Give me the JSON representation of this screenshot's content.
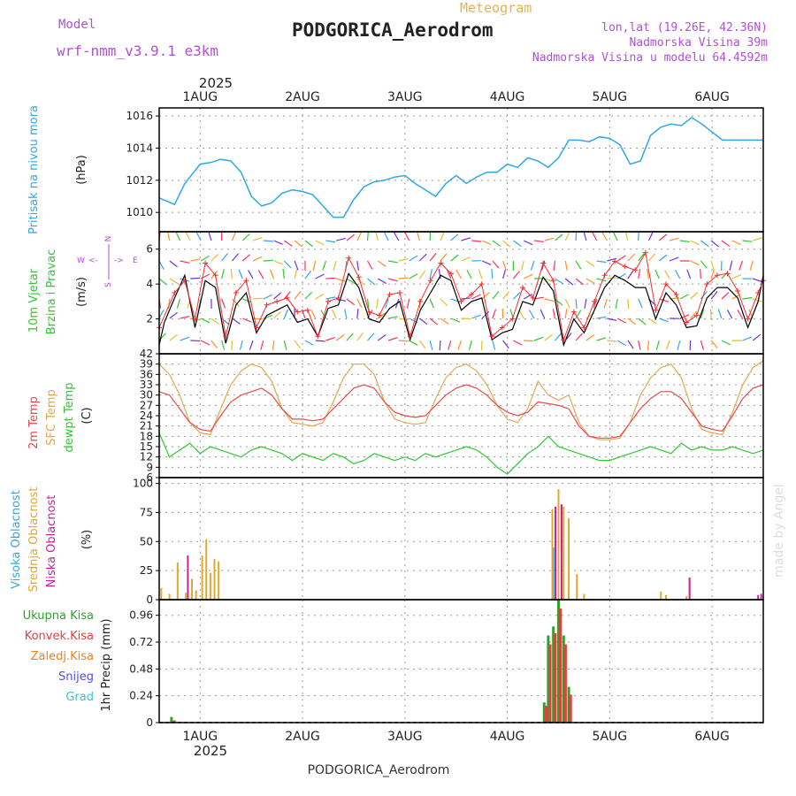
{
  "header": {
    "model_label": "Model",
    "model_name": "wrf-nmm_v3.9.1 e3km",
    "meteogram_label": "Meteogram",
    "station_title": "PODGORICA_Aerodrom",
    "lonlat": "lon,lat (19.26E, 42.36N)",
    "elevation": "Nadmorska Visina 39m",
    "model_elevation": "Nadmorska Visina u modelu 64.4592m"
  },
  "top_axis": {
    "year": "2025",
    "days": [
      "1AUG",
      "2AUG",
      "3AUG",
      "4AUG",
      "5AUG",
      "6AUG"
    ]
  },
  "bottom_axis": {
    "year": "2025",
    "days": [
      "1AUG",
      "2AUG",
      "3AUG",
      "4AUG",
      "5AUG",
      "6AUG"
    ]
  },
  "footer": {
    "station": "PODGORICA_Aerodrom",
    "credit": "made by Angel"
  },
  "colors": {
    "pressure": "#30a8e8",
    "wind_speed": "#000000",
    "gust": "#ee3030",
    "temp2m": "#e84a4a",
    "sfc_temp": "#e0a850",
    "dewpt": "#30c830",
    "cloud_high": "#30a8e8",
    "cloud_mid": "#e0a830",
    "cloud_low": "#c820a0",
    "total_precip": "#30a030",
    "conv_precip": "#e04040",
    "frozen_precip": "#f08020",
    "snow": "#5050e0",
    "hail": "#30c8c8"
  },
  "panels": {
    "pressure": {
      "ylabel_main": "Pritisak na nivou mora",
      "unit": "(hPa)"
    },
    "wind": {
      "ylabel_line1": "10m Vjetar",
      "ylabel_line2": "Brzina i Pravac",
      "unit": "(m/s)",
      "compass_n": "N",
      "compass_w": "W",
      "compass_e": "E",
      "compass_s": "S",
      "compass_w_arrow": "<-",
      "compass_e_arrow": "->"
    },
    "temperature": {
      "label_2m": "2m Temp",
      "label_sfc": "SFC Temp",
      "label_dew": "dewpt Temp",
      "unit": "(C)"
    },
    "cloud": {
      "label_high": "Visoka Oblacnost",
      "label_mid": "Srednja Oblacnost",
      "label_low": "Niska Oblacnost",
      "unit": "(%)"
    },
    "precip": {
      "legend": [
        "Ukupna Kisa",
        "Konvek.Kisa",
        "Zaledj.Kisa",
        "Snijeg",
        "Grad"
      ],
      "ylabel": "1hr Precip (mm)"
    }
  },
  "chart_data": [
    {
      "type": "line",
      "title": "Pritisak na nivou mora",
      "ylabel": "hPa",
      "x_range_days": [
        0.6,
        6.5
      ],
      "ylim": [
        1008.8,
        1016.5
      ],
      "yticks": [
        1010,
        1012,
        1014,
        1016
      ],
      "series": [
        {
          "name": "MSLP",
          "x": [
            0.6,
            0.75,
            0.85,
            1.0,
            1.1,
            1.2,
            1.3,
            1.4,
            1.5,
            1.6,
            1.7,
            1.8,
            1.9,
            2.0,
            2.1,
            2.2,
            2.3,
            2.4,
            2.5,
            2.6,
            2.7,
            2.8,
            2.9,
            3.0,
            3.1,
            3.2,
            3.3,
            3.4,
            3.5,
            3.6,
            3.7,
            3.8,
            3.9,
            4.0,
            4.1,
            4.2,
            4.3,
            4.4,
            4.5,
            4.6,
            4.7,
            4.8,
            4.9,
            5.0,
            5.1,
            5.2,
            5.3,
            5.4,
            5.5,
            5.6,
            5.7,
            5.8,
            5.9,
            6.0,
            6.1,
            6.2,
            6.3,
            6.4,
            6.5
          ],
          "values": [
            1010.9,
            1010.5,
            1011.8,
            1013.0,
            1013.1,
            1013.3,
            1013.2,
            1012.5,
            1011.0,
            1010.4,
            1010.6,
            1011.2,
            1011.4,
            1011.3,
            1011.1,
            1010.4,
            1009.7,
            1009.7,
            1010.8,
            1011.6,
            1011.9,
            1012.0,
            1012.2,
            1012.3,
            1011.8,
            1011.4,
            1011.0,
            1011.8,
            1012.3,
            1011.8,
            1012.2,
            1012.5,
            1012.5,
            1013.0,
            1012.8,
            1013.4,
            1013.2,
            1012.8,
            1013.4,
            1014.5,
            1014.5,
            1014.4,
            1014.7,
            1014.6,
            1014.2,
            1013.0,
            1013.2,
            1014.8,
            1015.3,
            1015.5,
            1015.4,
            1015.9,
            1015.5,
            1015.0,
            1014.5,
            1014.5,
            1014.5,
            1014.5,
            1014.5
          ]
        }
      ]
    },
    {
      "type": "line",
      "title": "10m Vjetar Brzina i Pravac",
      "ylabel": "m/s",
      "x_range_days": [
        0.6,
        6.5
      ],
      "ylim": [
        0,
        7
      ],
      "yticks": [
        2,
        4,
        6
      ],
      "series": [
        {
          "name": "Brzina",
          "x": [
            0.6,
            0.65,
            0.75,
            0.85,
            0.95,
            1.05,
            1.15,
            1.25,
            1.35,
            1.45,
            1.55,
            1.65,
            1.75,
            1.85,
            1.95,
            2.05,
            2.15,
            2.25,
            2.35,
            2.45,
            2.55,
            2.65,
            2.75,
            2.85,
            2.95,
            3.05,
            3.15,
            3.25,
            3.35,
            3.45,
            3.55,
            3.65,
            3.75,
            3.85,
            3.95,
            4.05,
            4.15,
            4.25,
            4.35,
            4.45,
            4.55,
            4.65,
            4.75,
            4.85,
            4.95,
            5.05,
            5.15,
            5.25,
            5.35,
            5.45,
            5.55,
            5.65,
            5.75,
            5.85,
            5.95,
            6.05,
            6.15,
            6.25,
            6.35,
            6.45,
            6.5
          ],
          "values": [
            0.5,
            1.8,
            3.2,
            4.5,
            1.5,
            4.2,
            3.8,
            0.6,
            2.8,
            3.5,
            1.2,
            2.2,
            2.5,
            2.8,
            1.8,
            2.0,
            1.0,
            2.6,
            2.8,
            4.6,
            3.8,
            2.0,
            1.8,
            2.6,
            3.0,
            0.8,
            2.5,
            3.5,
            4.5,
            4.2,
            2.5,
            3.0,
            3.2,
            0.8,
            1.2,
            1.4,
            3.0,
            2.8,
            4.4,
            3.6,
            0.5,
            2.0,
            1.2,
            2.5,
            3.8,
            4.5,
            4.2,
            3.8,
            3.8,
            2.0,
            3.5,
            2.8,
            1.5,
            1.6,
            3.2,
            3.8,
            3.8,
            3.2,
            1.5,
            3.0,
            4.5
          ]
        },
        {
          "name": "Udar",
          "x": [
            0.6,
            0.75,
            0.85,
            0.95,
            1.05,
            1.15,
            1.25,
            1.35,
            1.45,
            1.55,
            1.65,
            1.75,
            1.85,
            1.95,
            2.05,
            2.15,
            2.25,
            2.35,
            2.45,
            2.55,
            2.65,
            2.75,
            2.85,
            2.95,
            3.05,
            3.15,
            3.25,
            3.35,
            3.45,
            3.55,
            3.65,
            3.75,
            3.85,
            3.95,
            4.05,
            4.15,
            4.25,
            4.35,
            4.45,
            4.55,
            4.65,
            4.75,
            4.85,
            4.95,
            5.05,
            5.15,
            5.25,
            5.35,
            5.45,
            5.55,
            5.65,
            5.75,
            5.85,
            5.95,
            6.05,
            6.15,
            6.25,
            6.35,
            6.45,
            6.5
          ],
          "values": [
            1.5,
            3.5,
            4.2,
            2.0,
            5.2,
            4.5,
            1.0,
            3.5,
            4.2,
            1.5,
            2.8,
            3.0,
            3.2,
            2.4,
            2.5,
            1.0,
            3.0,
            3.2,
            5.5,
            4.4,
            2.4,
            2.2,
            3.4,
            3.5,
            1.0,
            3.0,
            4.2,
            5.2,
            4.6,
            3.0,
            3.4,
            4.0,
            1.0,
            1.5,
            2.0,
            3.8,
            3.2,
            5.2,
            4.2,
            0.8,
            2.4,
            1.5,
            3.0,
            4.5,
            5.3,
            5.0,
            4.8,
            5.8,
            2.5,
            4.0,
            3.4,
            1.8,
            2.2,
            4.0,
            4.5,
            4.6,
            3.6,
            2.0,
            3.5,
            4.2
          ]
        }
      ]
    },
    {
      "type": "line",
      "title": "Temperatura",
      "ylabel": "C",
      "x_range_days": [
        0.6,
        6.5
      ],
      "ylim": [
        6,
        42
      ],
      "yticks": [
        6,
        9,
        12,
        15,
        18,
        21,
        24,
        27,
        30,
        33,
        36,
        39,
        42
      ],
      "series": [
        {
          "name": "2m Temp",
          "x": [
            0.6,
            0.7,
            0.8,
            0.9,
            1.0,
            1.1,
            1.2,
            1.3,
            1.4,
            1.5,
            1.6,
            1.7,
            1.8,
            1.9,
            2.0,
            2.1,
            2.2,
            2.3,
            2.4,
            2.5,
            2.6,
            2.7,
            2.8,
            2.9,
            3.0,
            3.1,
            3.2,
            3.3,
            3.4,
            3.5,
            3.6,
            3.7,
            3.8,
            3.9,
            4.0,
            4.1,
            4.2,
            4.3,
            4.4,
            4.5,
            4.6,
            4.7,
            4.8,
            4.9,
            5.0,
            5.1,
            5.2,
            5.3,
            5.4,
            5.5,
            5.6,
            5.7,
            5.8,
            5.9,
            6.0,
            6.1,
            6.2,
            6.3,
            6.4,
            6.5
          ],
          "values": [
            31,
            30,
            26,
            22,
            20,
            19.5,
            24,
            28,
            30,
            31,
            32,
            30,
            26,
            23,
            23,
            22.5,
            23,
            26,
            29,
            32,
            33,
            32,
            28,
            25,
            24,
            23.5,
            24,
            27,
            30,
            32,
            33,
            32,
            30,
            27,
            25,
            24,
            25,
            28,
            27.5,
            27,
            26,
            21,
            18,
            17.5,
            17.5,
            18,
            22,
            26,
            29,
            31,
            31,
            29,
            25,
            21,
            20,
            19.5,
            24,
            29,
            32,
            33
          ]
        },
        {
          "name": "SFC Temp",
          "x": [
            0.6,
            0.7,
            0.8,
            0.9,
            1.0,
            1.1,
            1.2,
            1.3,
            1.4,
            1.5,
            1.6,
            1.7,
            1.8,
            1.9,
            2.0,
            2.1,
            2.2,
            2.3,
            2.4,
            2.5,
            2.6,
            2.7,
            2.8,
            2.9,
            3.0,
            3.1,
            3.2,
            3.3,
            3.4,
            3.5,
            3.6,
            3.7,
            3.8,
            3.9,
            4.0,
            4.1,
            4.2,
            4.3,
            4.4,
            4.5,
            4.6,
            4.7,
            4.8,
            4.9,
            5.0,
            5.1,
            5.2,
            5.3,
            5.4,
            5.5,
            5.6,
            5.7,
            5.8,
            5.9,
            6.0,
            6.1,
            6.2,
            6.3,
            6.4,
            6.5
          ],
          "values": [
            39,
            36,
            30,
            22,
            19,
            18.5,
            26,
            33,
            37,
            39,
            38,
            34,
            26,
            22,
            21.5,
            21,
            22,
            28,
            35,
            39,
            39,
            36,
            28,
            23,
            22,
            21.5,
            22,
            29,
            35,
            38,
            39,
            37,
            33,
            27,
            23,
            22,
            26,
            34,
            30,
            28.5,
            30,
            22,
            18,
            17,
            17,
            17.5,
            22,
            30,
            35,
            38,
            39,
            35,
            26,
            20,
            19,
            18.5,
            25,
            33,
            38,
            40
          ]
        },
        {
          "name": "dewpt Temp",
          "x": [
            0.6,
            0.7,
            0.8,
            0.9,
            1.0,
            1.1,
            1.2,
            1.3,
            1.4,
            1.5,
            1.6,
            1.7,
            1.8,
            1.9,
            2.0,
            2.1,
            2.2,
            2.3,
            2.4,
            2.5,
            2.6,
            2.7,
            2.8,
            2.9,
            3.0,
            3.1,
            3.2,
            3.3,
            3.4,
            3.5,
            3.6,
            3.7,
            3.8,
            3.9,
            4.0,
            4.1,
            4.2,
            4.3,
            4.4,
            4.5,
            4.6,
            4.7,
            4.8,
            4.9,
            5.0,
            5.1,
            5.2,
            5.3,
            5.4,
            5.5,
            5.6,
            5.7,
            5.8,
            5.9,
            6.0,
            6.1,
            6.2,
            6.3,
            6.4,
            6.5
          ],
          "values": [
            19,
            12,
            14,
            16,
            13,
            15,
            14,
            13,
            12,
            14,
            15,
            14,
            13,
            11,
            13,
            12,
            11,
            13,
            12,
            10,
            11,
            13,
            12,
            11,
            12,
            11,
            13,
            12,
            13,
            14,
            15,
            14,
            12,
            9,
            7,
            10,
            13,
            15,
            18,
            15,
            14,
            13,
            12,
            11,
            11,
            12,
            13,
            14,
            15,
            14,
            13,
            16,
            14,
            15,
            14,
            14,
            15,
            14,
            13,
            14
          ]
        }
      ]
    },
    {
      "type": "bar",
      "title": "Oblacnost",
      "ylabel": "%",
      "x_range_days": [
        0.6,
        6.5
      ],
      "ylim": [
        0,
        105
      ],
      "yticks": [
        0,
        25,
        50,
        75,
        100
      ],
      "series": [
        {
          "name": "Visoka Oblacnost",
          "x": [
            4.45,
            4.6
          ],
          "values": [
            45,
            10
          ]
        },
        {
          "name": "Srednja Oblacnost",
          "x": [
            0.62,
            0.7,
            0.78,
            0.86,
            0.92,
            0.96,
            1.02,
            1.06,
            1.1,
            1.14,
            1.18,
            4.44,
            4.5,
            4.55,
            4.6,
            4.68,
            4.75,
            5.5,
            5.55,
            5.75
          ],
          "values": [
            10,
            5,
            32,
            6,
            18,
            8,
            38,
            52,
            23,
            35,
            33,
            78,
            95,
            80,
            70,
            22,
            5,
            7,
            4,
            3
          ]
        },
        {
          "name": "Niska Oblacnost",
          "x": [
            0.88,
            4.47,
            4.53,
            5.78,
            6.45,
            6.48
          ],
          "values": [
            38,
            80,
            82,
            19,
            4,
            5
          ]
        }
      ]
    },
    {
      "type": "bar",
      "title": "1hr Precip",
      "ylabel": "mm",
      "x_range_days": [
        0.6,
        6.5
      ],
      "ylim": [
        0,
        1.1
      ],
      "yticks": [
        0,
        0.24,
        0.48,
        0.72,
        0.96
      ],
      "series": [
        {
          "name": "Ukupna Kisa",
          "x": [
            0.72,
            4.36,
            4.4,
            4.45,
            4.5,
            4.55,
            4.6
          ],
          "values": [
            0.05,
            0.18,
            0.78,
            0.86,
            1.1,
            0.78,
            0.32
          ]
        },
        {
          "name": "Konvek.Kisa",
          "x": [
            0.74,
            4.37,
            4.41,
            4.46,
            4.51,
            4.56,
            4.61
          ],
          "values": [
            0.02,
            0.15,
            0.7,
            0.8,
            1.02,
            0.7,
            0.25
          ]
        }
      ]
    }
  ]
}
